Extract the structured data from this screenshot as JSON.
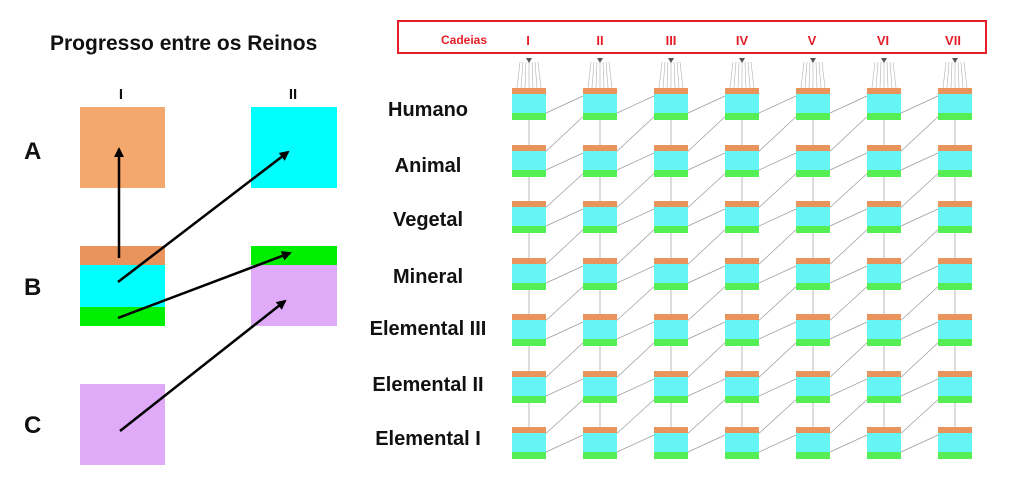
{
  "title": "Progresso entre os Reinos",
  "left_diagram": {
    "columns": [
      "I",
      "II"
    ],
    "rows": [
      "A",
      "B",
      "C"
    ]
  },
  "chains_header": {
    "label": "Cadeias",
    "chains": [
      "I",
      "II",
      "III",
      "IV",
      "V",
      "VI",
      "VII"
    ]
  },
  "kingdoms": [
    "Humano",
    "Animal",
    "Vegetal",
    "Mineral",
    "Elemental III",
    "Elemental II",
    "Elemental I"
  ],
  "colors": {
    "orange": "#f5a86e",
    "orange_dark": "#e8945c",
    "cyan": "#00ffff",
    "cyan_light": "#66f5f5",
    "green": "#00ee00",
    "green_light": "#55ee55",
    "violet": "#dfaaf8",
    "red": "#e41e26"
  }
}
